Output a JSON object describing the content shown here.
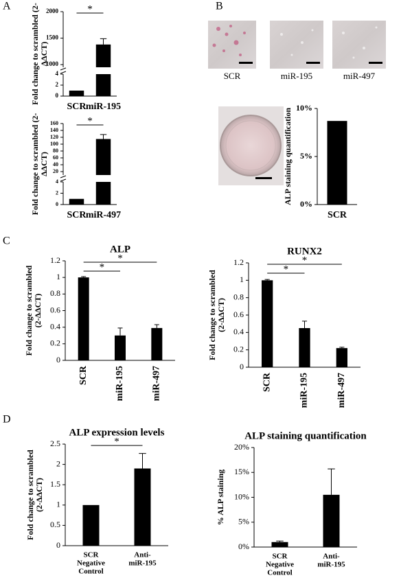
{
  "panel_labels": [
    "A",
    "B",
    "C",
    "D"
  ],
  "micrographs": [
    "SCR",
    "miR-195",
    "miR-497"
  ],
  "chart_data": [
    {
      "type": "bar",
      "ylabel": [
        "Fold change to scrambled (2-",
        "ΔΔCT)"
      ],
      "categories": [
        "SCR",
        "miR-195"
      ],
      "series": [
        {
          "color": "#000000",
          "values": [
            1,
            1380
          ],
          "errors": [
            null,
            110
          ]
        }
      ],
      "segments": [
        {
          "ylim": [
            0,
            4
          ],
          "yticks": [
            0,
            2,
            4
          ]
        },
        {
          "ylim": [
            950,
            2000
          ],
          "yticks": [
            1000,
            1500,
            2000
          ]
        }
      ],
      "annotations": [
        "*"
      ]
    },
    {
      "type": "bar",
      "ylabel": [
        "Fold change to scrambled (2-",
        "ΔΔCT)"
      ],
      "categories": [
        "SCR",
        "miR-497"
      ],
      "series": [
        {
          "color": "#000000",
          "values": [
            1,
            115
          ],
          "errors": [
            null,
            13
          ]
        }
      ],
      "segments": [
        {
          "ylim": [
            0,
            4
          ],
          "yticks": [
            0,
            2,
            4
          ]
        },
        {
          "ylim": [
            10,
            160
          ],
          "yticks": [
            20,
            40,
            60,
            80,
            100,
            120,
            140,
            160
          ]
        }
      ],
      "annotations": [
        "*"
      ]
    },
    {
      "type": "bar",
      "ylabel": [
        "ALP staining quantification"
      ],
      "categories": [
        "SCR"
      ],
      "series": [
        {
          "color": "#000000",
          "values": [
            8.7
          ]
        }
      ],
      "ylim": [
        0,
        10
      ],
      "yticks": [
        {
          "value": 0,
          "label": "0%"
        },
        {
          "value": 5,
          "label": "5%"
        },
        {
          "value": 10,
          "label": "10%"
        }
      ]
    },
    {
      "type": "bar",
      "title": "ALP",
      "ylabel": [
        "Fold change to scrambled",
        "(2-ΔΔCT)"
      ],
      "categories": [
        "SCR",
        "miR-195",
        "miR-497"
      ],
      "rotated_labels": true,
      "series": [
        {
          "color": "#000000",
          "values": [
            1,
            0.3,
            0.39
          ],
          "errors": [
            0.01,
            0.09,
            0.04
          ]
        }
      ],
      "ylim": [
        0,
        1.2
      ],
      "yticks": [
        0,
        0.2,
        0.4,
        0.6,
        0.8,
        1,
        1.2
      ],
      "annotations": [
        "*",
        "*"
      ]
    },
    {
      "type": "bar",
      "title": "RUNX2",
      "ylabel": [
        "Fold change to scrambled",
        "(2-ΔΔCT)"
      ],
      "categories": [
        "SCR",
        "miR-195",
        "miR-497"
      ],
      "rotated_labels": true,
      "series": [
        {
          "color": "#000000",
          "values": [
            1,
            0.45,
            0.22
          ],
          "errors": [
            0.01,
            0.08,
            0.01
          ]
        }
      ],
      "ylim": [
        0,
        1.2
      ],
      "yticks": [
        0,
        0.2,
        0.4,
        0.6,
        0.8,
        1,
        1.2
      ],
      "annotations": [
        "*",
        "*"
      ]
    },
    {
      "type": "bar",
      "title": "ALP expression levels",
      "ylabel": [
        "Fold change to scrambled",
        "(2-ΔΔCT)"
      ],
      "categories": [
        [
          "SCR",
          "Negative",
          "Control"
        ],
        [
          "Anti-",
          "miR-195"
        ]
      ],
      "series": [
        {
          "color": "#000000",
          "values": [
            1,
            1.9
          ],
          "errors": [
            null,
            0.37
          ]
        }
      ],
      "ylim": [
        0,
        2.5
      ],
      "yticks": [
        0,
        0.5,
        1,
        1.5,
        2,
        2.5
      ],
      "annotations": [
        "*"
      ]
    },
    {
      "type": "bar",
      "title": "ALP staining quantification",
      "ylabel": [
        "% ALP staining"
      ],
      "categories": [
        [
          "SCR",
          "Negative",
          "Control"
        ],
        [
          "Anti-",
          "miR-195"
        ]
      ],
      "series": [
        {
          "color": "#000000",
          "values": [
            1,
            10.5
          ],
          "errors": [
            0.2,
            5.2
          ]
        }
      ],
      "ylim": [
        0,
        20
      ],
      "yticks": [
        {
          "value": 0,
          "label": "0%"
        },
        {
          "value": 5,
          "label": "5%"
        },
        {
          "value": 10,
          "label": "10%"
        },
        {
          "value": 15,
          "label": "15%"
        },
        {
          "value": 20,
          "label": "20%"
        }
      ]
    }
  ]
}
